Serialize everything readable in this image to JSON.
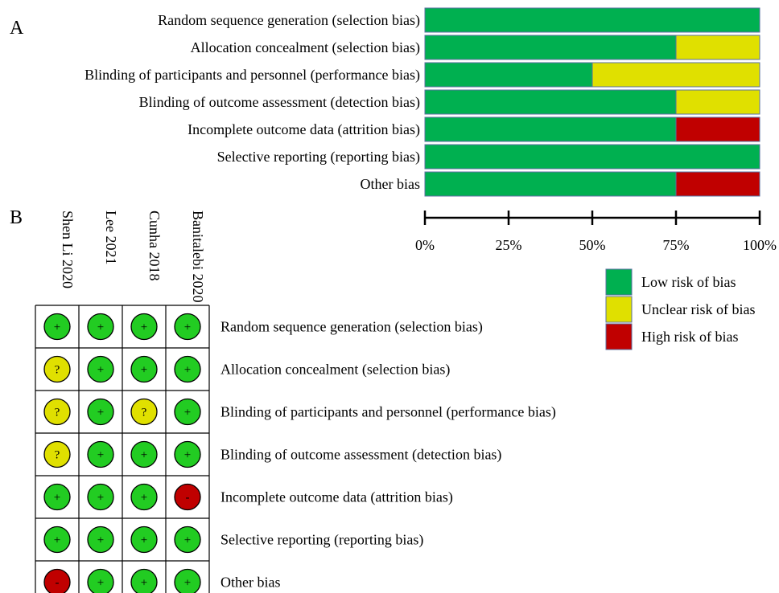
{
  "panel_labels": {
    "a": "A",
    "b": "B"
  },
  "colors": {
    "low": "#00b050",
    "unclear": "#e0e000",
    "high": "#c00000",
    "bar_border": "#5a6fa0",
    "dot_low": "#22cc22"
  },
  "chart_data": [
    {
      "type": "bar",
      "orientation": "horizontal",
      "stacked": true,
      "title": "",
      "xlabel": "",
      "ylabel": "",
      "xlim": [
        0,
        100
      ],
      "x_ticks": [
        "0%",
        "25%",
        "50%",
        "75%",
        "100%"
      ],
      "categories": [
        "Random sequence generation (selection bias)",
        "Allocation concealment (selection bias)",
        "Blinding of participants and personnel (performance bias)",
        "Blinding of outcome assessment (detection bias)",
        "Incomplete outcome data (attrition bias)",
        "Selective reporting (reporting bias)",
        "Other bias"
      ],
      "series": [
        {
          "name": "Low risk of bias",
          "color_key": "low",
          "values": [
            100,
            75,
            50,
            75,
            75,
            100,
            75
          ]
        },
        {
          "name": "Unclear risk of bias",
          "color_key": "unclear",
          "values": [
            0,
            25,
            50,
            25,
            0,
            0,
            0
          ]
        },
        {
          "name": "High risk of bias",
          "color_key": "high",
          "values": [
            0,
            0,
            0,
            0,
            25,
            0,
            25
          ]
        }
      ],
      "legend_position": "bottom-right"
    },
    {
      "type": "table",
      "title": "",
      "studies": [
        "Shen Li 2020",
        "Lee 2021",
        "Cunha 2018",
        "Banitalebi 2020"
      ],
      "domains": [
        "Random sequence generation (selection bias)",
        "Allocation concealment (selection bias)",
        "Blinding of participants and personnel (performance bias)",
        "Blinding of outcome assessment (detection bias)",
        "Incomplete outcome data (attrition bias)",
        "Selective reporting (reporting bias)",
        "Other bias"
      ],
      "symbols": {
        "low": "+",
        "unclear": "?",
        "high": "-"
      },
      "judgements": [
        [
          "low",
          "low",
          "low",
          "low"
        ],
        [
          "unclear",
          "low",
          "low",
          "low"
        ],
        [
          "unclear",
          "low",
          "unclear",
          "low"
        ],
        [
          "unclear",
          "low",
          "low",
          "low"
        ],
        [
          "low",
          "low",
          "low",
          "high"
        ],
        [
          "low",
          "low",
          "low",
          "low"
        ],
        [
          "high",
          "low",
          "low",
          "low"
        ]
      ]
    }
  ]
}
